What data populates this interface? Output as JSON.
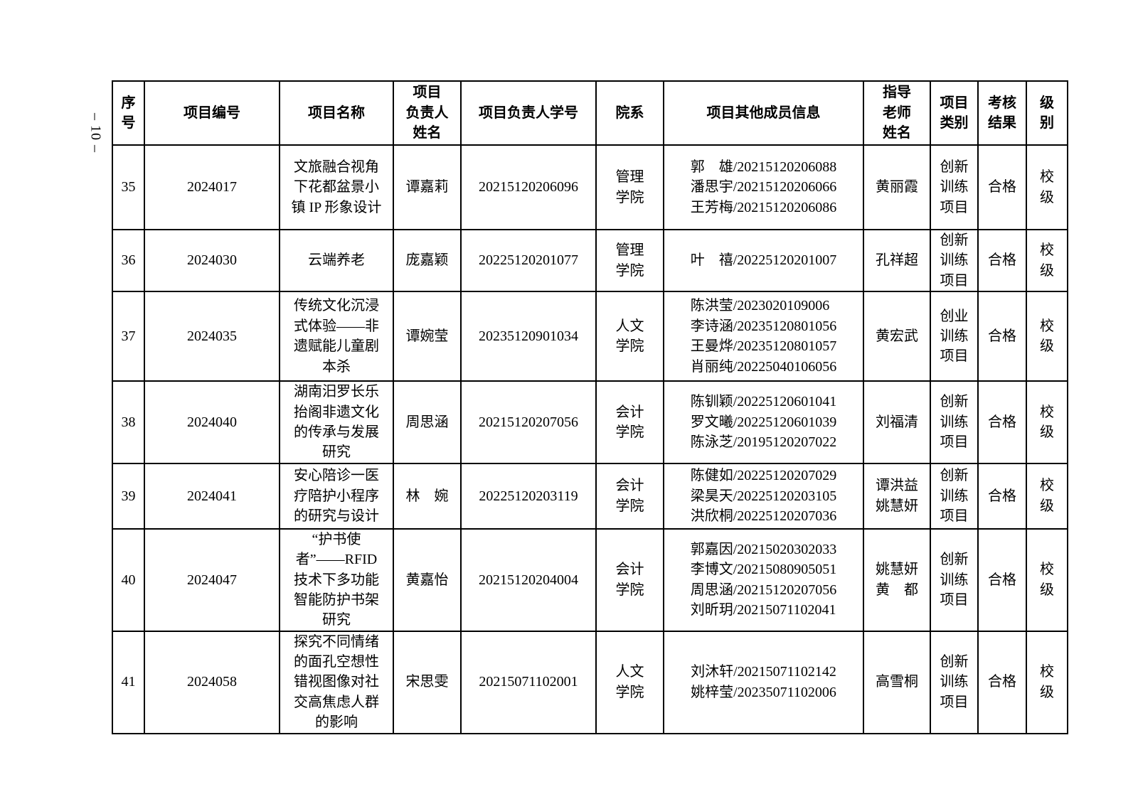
{
  "page": {
    "number_label": "– 10 –"
  },
  "table": {
    "headers": [
      "序\n号",
      "项目编号",
      "项目名称",
      "项目\n负责人\n姓名",
      "项目负责人学号",
      "院系",
      "项目其他成员信息",
      "指导\n老师\n姓名",
      "项目\n类别",
      "考核\n结果",
      "级\n别"
    ],
    "rows": [
      {
        "seq": "35",
        "code": "2024017",
        "name": "文旅融合视角下花都盆景小镇 IP 形象设计",
        "leader": "谭嘉莉",
        "leader_id": "20215120206096",
        "dept": "管理\n学院",
        "members": [
          "郭　雄/20215120206088",
          "潘思宇/20215120206066",
          "王芳梅/20215120206086"
        ],
        "advisors": [
          "黄丽霞"
        ],
        "category": "创新\n训练\n项目",
        "result": "合格",
        "level": "校\n级"
      },
      {
        "seq": "36",
        "code": "2024030",
        "name": "云端养老",
        "leader": "庞嘉颖",
        "leader_id": "20225120201077",
        "dept": "管理\n学院",
        "members": [
          "叶　禧/20225120201007"
        ],
        "advisors": [
          "孔祥超"
        ],
        "category": "创新\n训练\n项目",
        "result": "合格",
        "level": "校\n级"
      },
      {
        "seq": "37",
        "code": "2024035",
        "name": "传统文化沉浸式体验——非遗赋能儿童剧本杀",
        "leader": "谭婉莹",
        "leader_id": "20235120901034",
        "dept": "人文\n学院",
        "members": [
          "陈洪莹/2023020109006",
          "李诗涵/20235120801056",
          "王曼烨/20235120801057",
          "肖丽纯/20225040106056"
        ],
        "advisors": [
          "黄宏武"
        ],
        "category": "创业\n训练\n项目",
        "result": "合格",
        "level": "校\n级"
      },
      {
        "seq": "38",
        "code": "2024040",
        "name": "湖南汨罗长乐抬阁非遗文化的传承与发展研究",
        "leader": "周思涵",
        "leader_id": "20215120207056",
        "dept": "会计\n学院",
        "members": [
          "陈钏颖/20225120601041",
          "罗文曦/20225120601039",
          "陈泳芝/20195120207022"
        ],
        "advisors": [
          "刘福清"
        ],
        "category": "创新\n训练\n项目",
        "result": "合格",
        "level": "校\n级"
      },
      {
        "seq": "39",
        "code": "2024041",
        "name": "安心陪诊一医疗陪护小程序的研究与设计",
        "leader": "林　婉",
        "leader_id": "20225120203119",
        "dept": "会计\n学院",
        "members": [
          "陈健如/20225120207029",
          "梁昊天/20225120203105",
          "洪欣桐/20225120207036"
        ],
        "advisors": [
          "谭洪益",
          "姚慧妍"
        ],
        "category": "创新\n训练\n项目",
        "result": "合格",
        "level": "校\n级"
      },
      {
        "seq": "40",
        "code": "2024047",
        "name": "“护书使者”——RFID 技术下多功能智能防护书架研究",
        "leader": "黄嘉怡",
        "leader_id": "20215120204004",
        "dept": "会计\n学院",
        "members": [
          "郭嘉因/20215020302033",
          "李博文/20215080905051",
          "周思涵/20215120207056",
          "刘昕玥/20215071102041"
        ],
        "advisors": [
          "姚慧妍",
          "黄　都"
        ],
        "category": "创新\n训练\n项目",
        "result": "合格",
        "level": "校\n级"
      },
      {
        "seq": "41",
        "code": "2024058",
        "name": "探究不同情绪的面孔空想性错视图像对社交高焦虑人群的影响",
        "leader": "宋思雯",
        "leader_id": "20215071102001",
        "dept": "人文\n学院",
        "members": [
          "刘沐轩/20215071102142",
          "姚梓莹/20235071102006"
        ],
        "advisors": [
          "高雪桐"
        ],
        "category": "创新\n训练\n项目",
        "result": "合格",
        "level": "校\n级"
      }
    ]
  }
}
